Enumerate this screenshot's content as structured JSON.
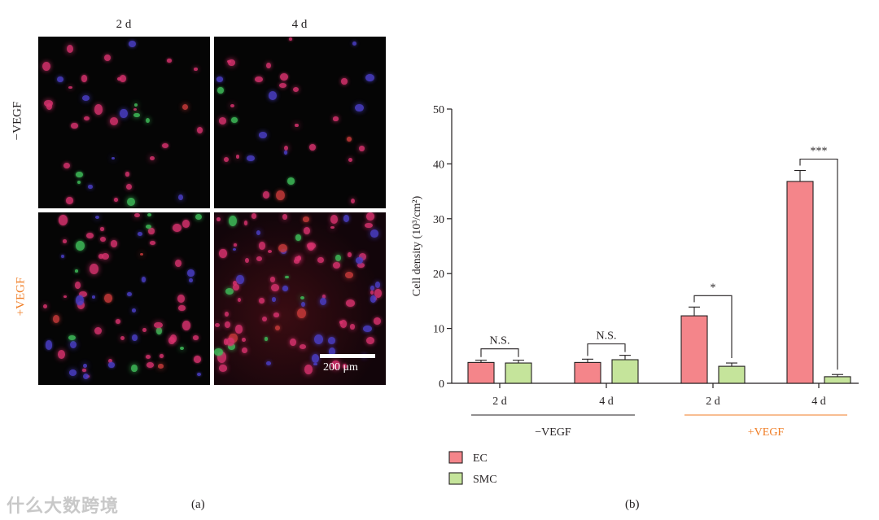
{
  "panel_a": {
    "label": "(a)",
    "col_headers": [
      "2 d",
      "4 d"
    ],
    "row_headers": [
      "−VEGF",
      "+VEGF"
    ],
    "row_header_colors": [
      "#231f20",
      "#f07e26"
    ],
    "scale_bar_text": "200 μm"
  },
  "panel_b": {
    "label": "(b)"
  },
  "watermark": "什么大数跨境",
  "chart_data": {
    "type": "bar",
    "ylabel": "Cell density (10³/cm²)",
    "ylim": [
      0,
      50
    ],
    "yticks": [
      0,
      10,
      20,
      30,
      40,
      50
    ],
    "categories": [
      "2 d",
      "4 d",
      "2 d",
      "4 d"
    ],
    "series": [
      {
        "name": "EC",
        "color": "#f4858a",
        "values": [
          3.8,
          3.8,
          12.3,
          36.8
        ],
        "errors": [
          0.4,
          0.6,
          1.6,
          2.0
        ]
      },
      {
        "name": "SMC",
        "color": "#c5e49b",
        "values": [
          3.7,
          4.3,
          3.1,
          1.2
        ],
        "errors": [
          0.5,
          0.8,
          0.6,
          0.4
        ]
      }
    ],
    "groups": [
      {
        "label": "−VEGF",
        "color": "#231f20",
        "categories": [
          0,
          1
        ]
      },
      {
        "label": "+VEGF",
        "color": "#f07e26",
        "categories": [
          2,
          3
        ]
      }
    ],
    "significance": [
      "N.S.",
      "N.S.",
      "*",
      "***"
    ],
    "legend": [
      "EC",
      "SMC"
    ],
    "legend_position": "bottom-left"
  }
}
